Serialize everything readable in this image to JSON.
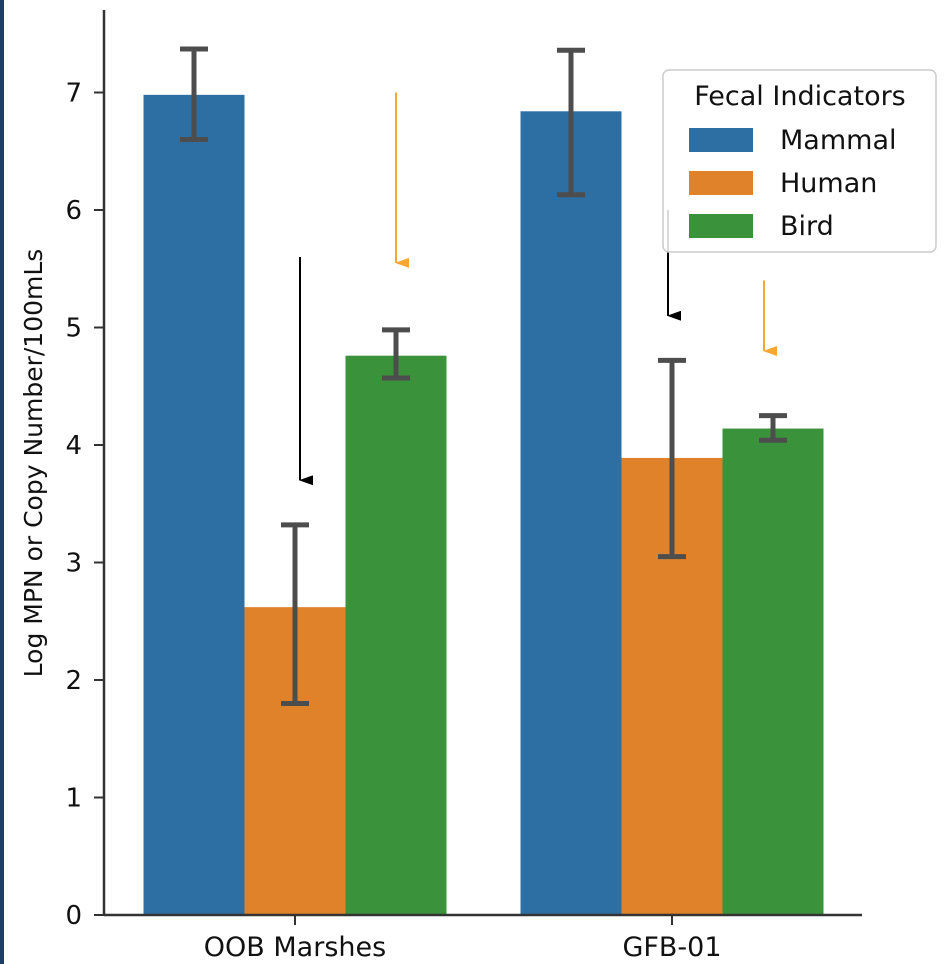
{
  "chart_data": {
    "type": "bar",
    "title": "",
    "xlabel": "",
    "ylabel": "Log MPN or Copy Number/100mLs",
    "ylim": [
      0,
      7.7
    ],
    "yticks": [
      0,
      1,
      2,
      3,
      4,
      5,
      6,
      7
    ],
    "categories": [
      "OOB Marshes",
      "GFB-01"
    ],
    "legend": {
      "title": "Fecal Indicators",
      "position": "top-right"
    },
    "series": [
      {
        "name": "Mammal",
        "color": "#2e6fa3",
        "values": [
          6.98,
          6.84
        ],
        "error_low": [
          6.6,
          6.13
        ],
        "error_high": [
          7.37,
          7.36
        ]
      },
      {
        "name": "Human",
        "color": "#e0822a",
        "values": [
          2.62,
          3.89
        ],
        "error_low": [
          1.8,
          3.05
        ],
        "error_high": [
          3.32,
          4.72
        ]
      },
      {
        "name": "Bird",
        "color": "#3a923a",
        "values": [
          4.76,
          4.14
        ],
        "error_low": [
          4.57,
          4.04
        ],
        "error_high": [
          4.98,
          4.25
        ]
      }
    ],
    "annotations": [
      {
        "type": "arrow",
        "color": "#000000",
        "category": "OOB Marshes",
        "from_y": 5.6,
        "to_y": 3.7
      },
      {
        "type": "arrow",
        "color": "#f4a733",
        "category": "OOB Marshes",
        "from_y": 7.0,
        "to_y": 5.55
      },
      {
        "type": "arrow",
        "color": "#000000",
        "category": "GFB-01",
        "from_y": 6.0,
        "to_y": 5.1
      },
      {
        "type": "arrow",
        "color": "#f4a733",
        "category": "GFB-01",
        "from_y": 5.4,
        "to_y": 4.8
      }
    ],
    "grid": false
  }
}
